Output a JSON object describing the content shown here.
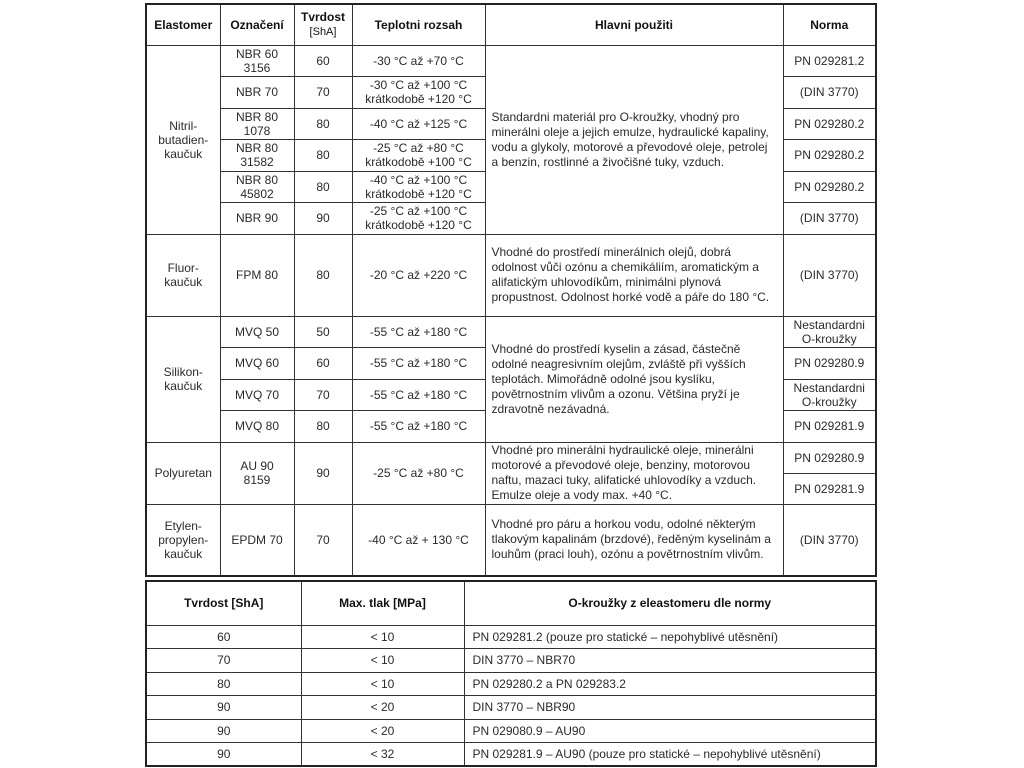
{
  "table1": {
    "headers": {
      "elastomer": "Elastomer",
      "designation": "Označení",
      "hardness": "Tvrdost",
      "hardness_unit": "[ShA]",
      "temperature": "Teplotni rozsah",
      "use": "Hlavni použiti",
      "norm": "Norma"
    },
    "groups": [
      {
        "elastomer": "Nitril-\nbutadien-\nkaučuk",
        "use": "Standardni materiál pro O-kroužky, vhodný pro minerálni oleje a jejich emulze, hydraulické kapaliny, vodu a glykoly, motorové a převodové oleje, petrolej a benzin, rostlinné a živočišné tuky, vzduch.",
        "items": [
          {
            "designation": "NBR 60\n3156",
            "hardness": "60",
            "temperature": "-30 °C až +70 °C"
          },
          {
            "designation": "NBR 70",
            "hardness": "70",
            "temperature": "-30 °C až +100 °C\nkrátkodobě +120 °C"
          },
          {
            "designation": "NBR 80\n1078",
            "hardness": "80",
            "temperature": "-40 °C až +125 °C"
          },
          {
            "designation": "NBR 80\n31582",
            "hardness": "80",
            "temperature": "-25 °C až +80 °C\nkrátkodobě +100 °C"
          },
          {
            "designation": "NBR 80\n45802",
            "hardness": "80",
            "temperature": "-40 °C až +100 °C\nkrátkodobě +120 °C"
          },
          {
            "designation": "NBR 90",
            "hardness": "90",
            "temperature": "-25 °C až +100 °C\nkrátkodobě +120 °C"
          }
        ],
        "norms": [
          "PN 029281.2",
          "(DIN 3770)",
          "PN 029280.2",
          "PN 029280.2",
          "PN 029280.2",
          "(DIN 3770)"
        ]
      },
      {
        "elastomer": "Fluor-\nkaučuk",
        "use": "Vhodné do prostředí minerálnich olejů, dobrá odolnost vůči ozónu a chemikáliím, aromatickým a alifatickým uhlovodíkům, minimálni plynová propustnost. Odolnost horké vodě a páře do 180 °C.",
        "items": [
          {
            "designation": "FPM 80",
            "hardness": "80",
            "temperature": "-20 °C až +220 °C"
          }
        ],
        "norms": [
          "(DIN 3770)"
        ]
      },
      {
        "elastomer": "Silikon-\nkaučuk",
        "use": "Vhodné do prostředí kyselin a zásad, částečně odolné neagresivním olejům, zvláště při vyšších teplotách. Mimořádně odolné jsou kyslíku, povětrnostním vlivům a ozonu. Většina pryží je zdravotně nezávadná.",
        "items": [
          {
            "designation": "MVQ 50",
            "hardness": "50",
            "temperature": "-55 °C až +180 °C"
          },
          {
            "designation": "MVQ 60",
            "hardness": "60",
            "temperature": "-55 °C až +180 °C"
          },
          {
            "designation": "MVQ 70",
            "hardness": "70",
            "temperature": "-55 °C až +180 °C"
          },
          {
            "designation": "MVQ 80",
            "hardness": "80",
            "temperature": "-55 °C až +180 °C"
          }
        ],
        "norms": [
          "Nestandardni\nO-kroužky",
          "PN 029280.9",
          "Nestandardni\nO-kroužky",
          "PN 029281.9"
        ]
      },
      {
        "elastomer": "Polyuretan",
        "use": "Vhodné pro minerálni hydraulické oleje, minerálni motorové a převodové oleje, benziny, motorovou naftu, mazaci tuky, alifatické uhlovodíky a vzduch. Emulze oleje a vody max. +40 °C.",
        "items": [
          {
            "designation": "AU 90\n8159",
            "hardness": "90",
            "temperature": "-25 °C až +80 °C"
          }
        ],
        "norms": [
          "PN 029280.9",
          "PN 029281.9"
        ]
      },
      {
        "elastomer": "Etylen-\npropylen-\nkaučuk",
        "use": "Vhodné pro páru a horkou vodu, odolné některým tlakovým kapalinám (brzdové), ředěným kyselinám a louhům (praci louh), ozónu a povětrnostním vlivům.",
        "items": [
          {
            "designation": "EPDM 70",
            "hardness": "70",
            "temperature": "-40 °C až + 130 °C"
          }
        ],
        "norms": [
          "(DIN 3770)"
        ]
      }
    ]
  },
  "table2": {
    "headers": [
      "Tvrdost [ShA]",
      "Max. tlak [MPa]",
      "O-kroužky z eleastomeru dle normy"
    ],
    "rows": [
      [
        "60",
        "< 10",
        "PN 029281.2 (pouze pro statické – nepohyblivé utěsnění)"
      ],
      [
        "70",
        "< 10",
        "DIN 3770 – NBR70"
      ],
      [
        "80",
        "< 10",
        "PN 029280.2 a PN 029283.2"
      ],
      [
        "90",
        "< 20",
        "DIN 3770 – NBR90"
      ],
      [
        "90",
        "< 20",
        "PN 029080.9 – AU90"
      ],
      [
        "90",
        "< 32",
        "PN 029281.9 – AU90 (pouze pro statické – nepohyblivé utěsnění)"
      ]
    ]
  }
}
